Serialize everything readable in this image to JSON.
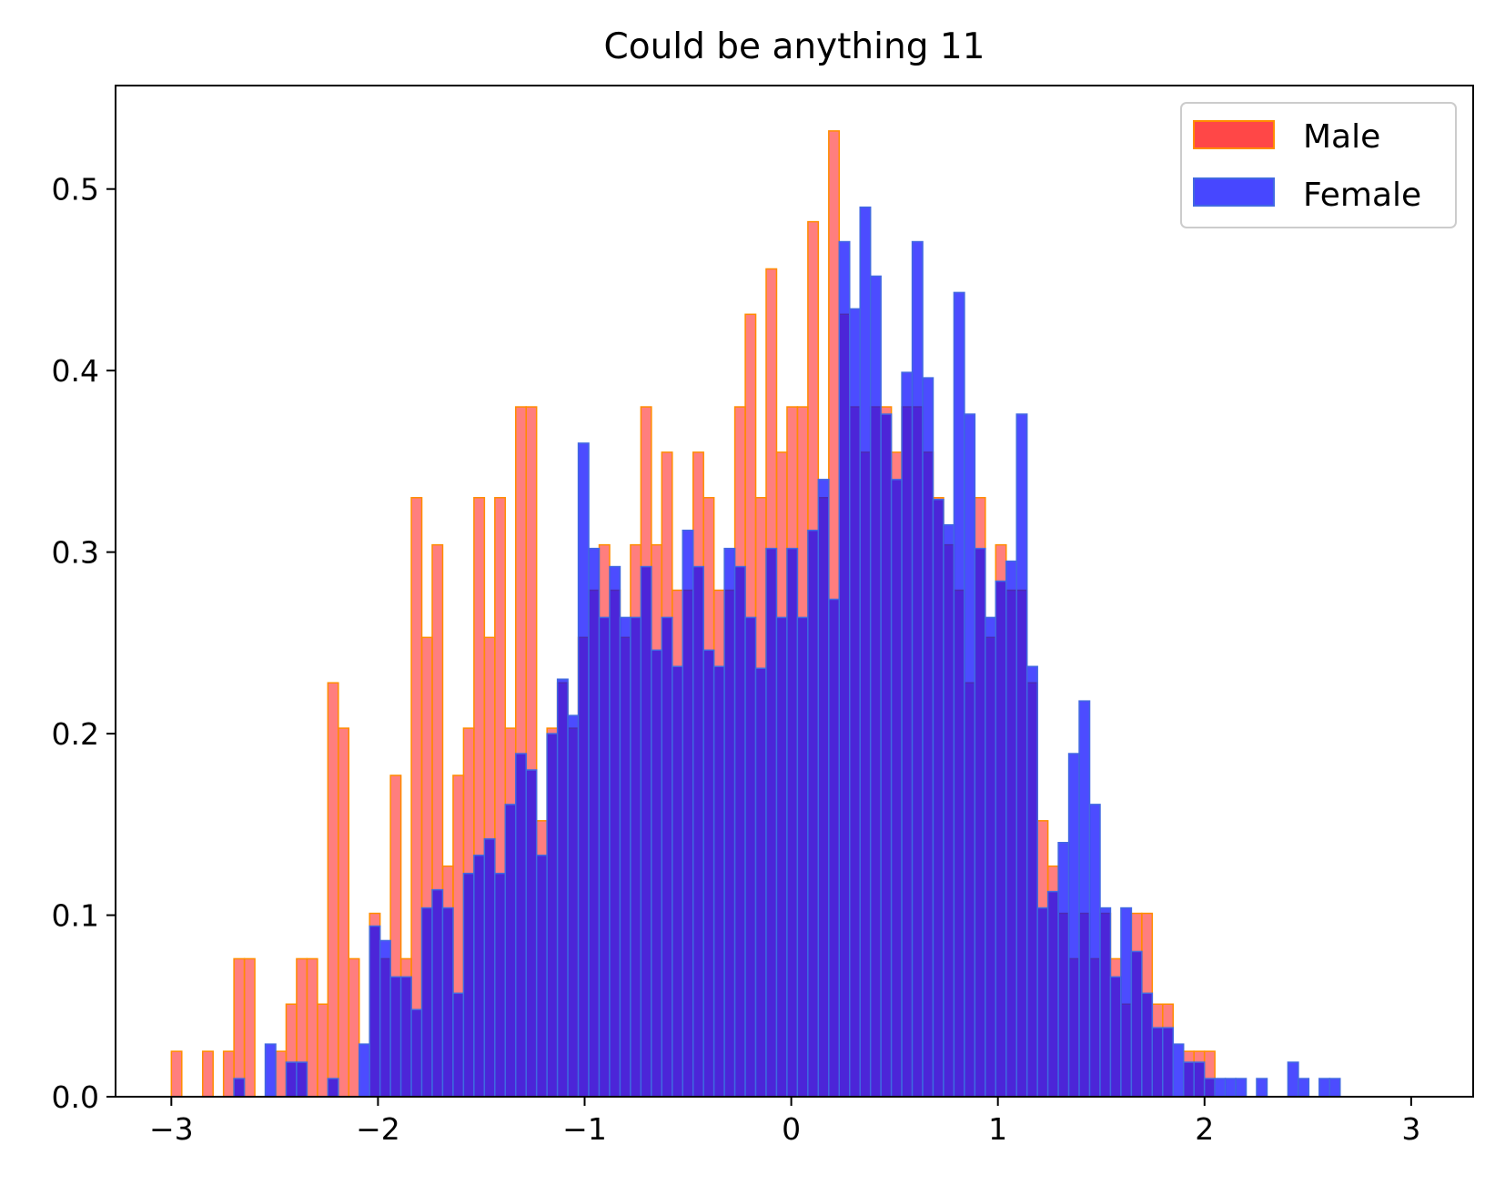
{
  "chart_data": {
    "type": "histogram",
    "title": "Could be anything 11",
    "xlabel": "",
    "ylabel": "",
    "xlim": [
      -3.27,
      3.3
    ],
    "ylim": [
      0.0,
      0.557
    ],
    "x_ticks": [
      -3,
      -2,
      -1,
      0,
      1,
      2,
      3
    ],
    "x_tick_labels": [
      "−3",
      "−2",
      "−1",
      "0",
      "1",
      "2",
      "3"
    ],
    "y_ticks": [
      0.0,
      0.1,
      0.2,
      0.3,
      0.4,
      0.5
    ],
    "y_tick_labels": [
      "0.0",
      "0.1",
      "0.2",
      "0.3",
      "0.4",
      "0.5"
    ],
    "grid": false,
    "legend_position": "top-right",
    "series": [
      {
        "name": "Male",
        "color": "#ff4747",
        "edge_color": "#ff8c00",
        "bin_start": -3.0,
        "bin_width": 0.0505,
        "values": [
          0.025,
          0,
          0,
          0.025,
          0,
          0.025,
          0.076,
          0.076,
          0,
          0,
          0.025,
          0.051,
          0.076,
          0.076,
          0.051,
          0.228,
          0.203,
          0.076,
          0,
          0.101,
          0.076,
          0.177,
          0.076,
          0.33,
          0.253,
          0.304,
          0.127,
          0.177,
          0.203,
          0.33,
          0.253,
          0.33,
          0.203,
          0.38,
          0.38,
          0.152,
          0.203,
          0.228,
          0.203,
          0.253,
          0.279,
          0.304,
          0.279,
          0.253,
          0.304,
          0.38,
          0.304,
          0.355,
          0.279,
          0.279,
          0.355,
          0.33,
          0.279,
          0.279,
          0.38,
          0.431,
          0.33,
          0.456,
          0.355,
          0.38,
          0.38,
          0.482,
          0.33,
          0.532,
          0.431,
          0.38,
          0.355,
          0.38,
          0.38,
          0.355,
          0.38,
          0.38,
          0.355,
          0.33,
          0.304,
          0.279,
          0.228,
          0.33,
          0.253,
          0.304,
          0.279,
          0.279,
          0.228,
          0.152,
          0.127,
          0.101,
          0.076,
          0.101,
          0.076,
          0.101,
          0.076,
          0.051,
          0.101,
          0.101,
          0.051,
          0.051,
          0,
          0.025,
          0.025,
          0.025
        ]
      },
      {
        "name": "Female",
        "color": "#0000ff",
        "edge_color": "#4169e1",
        "bin_start": -3.0,
        "bin_width": 0.0505,
        "values": [
          0,
          0,
          0,
          0,
          0,
          0,
          0.01,
          0,
          0,
          0.029,
          0,
          0.019,
          0.019,
          0,
          0,
          0.01,
          0,
          0,
          0.029,
          0.094,
          0.086,
          0.066,
          0.066,
          0.048,
          0.104,
          0.114,
          0.104,
          0.057,
          0.123,
          0.133,
          0.142,
          0.123,
          0.161,
          0.189,
          0.18,
          0.133,
          0.2,
          0.23,
          0.21,
          0.36,
          0.302,
          0.264,
          0.292,
          0.264,
          0.264,
          0.292,
          0.246,
          0.264,
          0.237,
          0.312,
          0.292,
          0.246,
          0.237,
          0.302,
          0.292,
          0.264,
          0.236,
          0.302,
          0.264,
          0.302,
          0.264,
          0.312,
          0.34,
          0.274,
          0.471,
          0.434,
          0.49,
          0.452,
          0.376,
          0.34,
          0.399,
          0.471,
          0.396,
          0.329,
          0.315,
          0.443,
          0.376,
          0.302,
          0.264,
          0.284,
          0.295,
          0.376,
          0.237,
          0.104,
          0.113,
          0.14,
          0.189,
          0.218,
          0.161,
          0.104,
          0.066,
          0.104,
          0.08,
          0.057,
          0.038,
          0.038,
          0.029,
          0.019,
          0.019,
          0.01,
          0.01,
          0.01,
          0.01,
          0,
          0.01,
          0,
          0,
          0.019,
          0.01,
          0,
          0.01,
          0.01
        ]
      }
    ]
  }
}
